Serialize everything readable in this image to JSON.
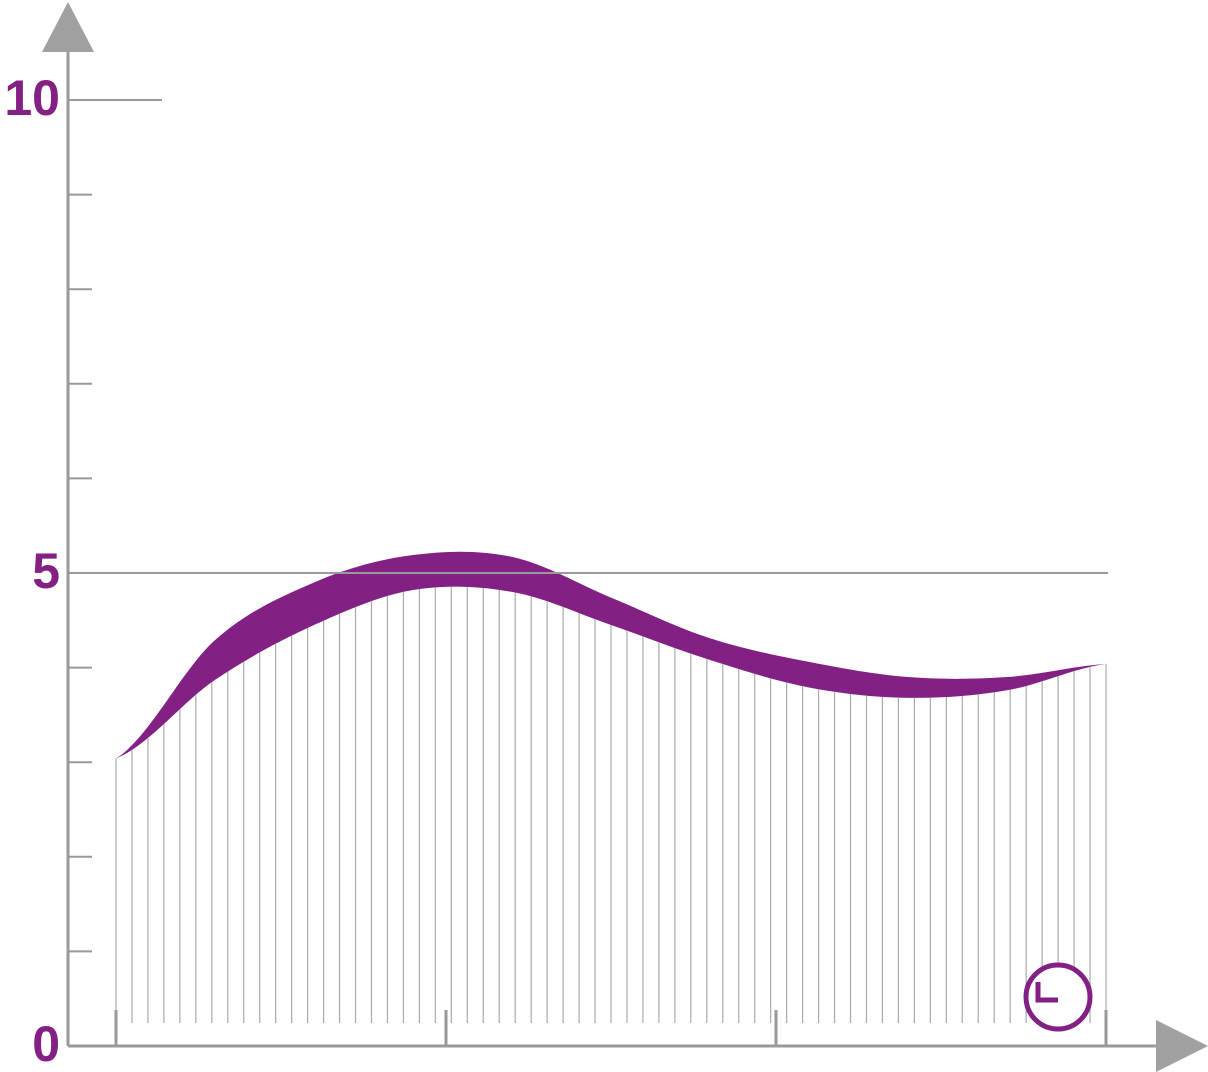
{
  "chart_data": {
    "type": "band",
    "x": [
      0,
      3,
      6,
      9,
      12,
      15,
      18,
      21,
      24,
      27,
      30
    ],
    "series": [
      {
        "color": "#ffffff",
        "values": [
          3.04,
          3.87,
          4.45,
          4.82,
          4.8,
          4.45,
          4.08,
          3.79,
          3.68,
          3.76,
          4.04
        ]
      },
      {
        "color": "#832084",
        "values": [
          3.04,
          4.29,
          4.9,
          5.19,
          5.17,
          4.74,
          4.31,
          4.06,
          3.9,
          3.9,
          4.04
        ]
      }
    ],
    "xlim": [
      0,
      30
    ],
    "xticks": [
      0,
      10,
      20,
      30
    ],
    "ylim": [
      0,
      10
    ],
    "yticks": [
      0,
      5,
      10
    ],
    "minor_yticks": [
      1,
      2,
      3,
      4,
      6,
      7,
      8,
      9
    ],
    "label_color": "#832084"
  }
}
